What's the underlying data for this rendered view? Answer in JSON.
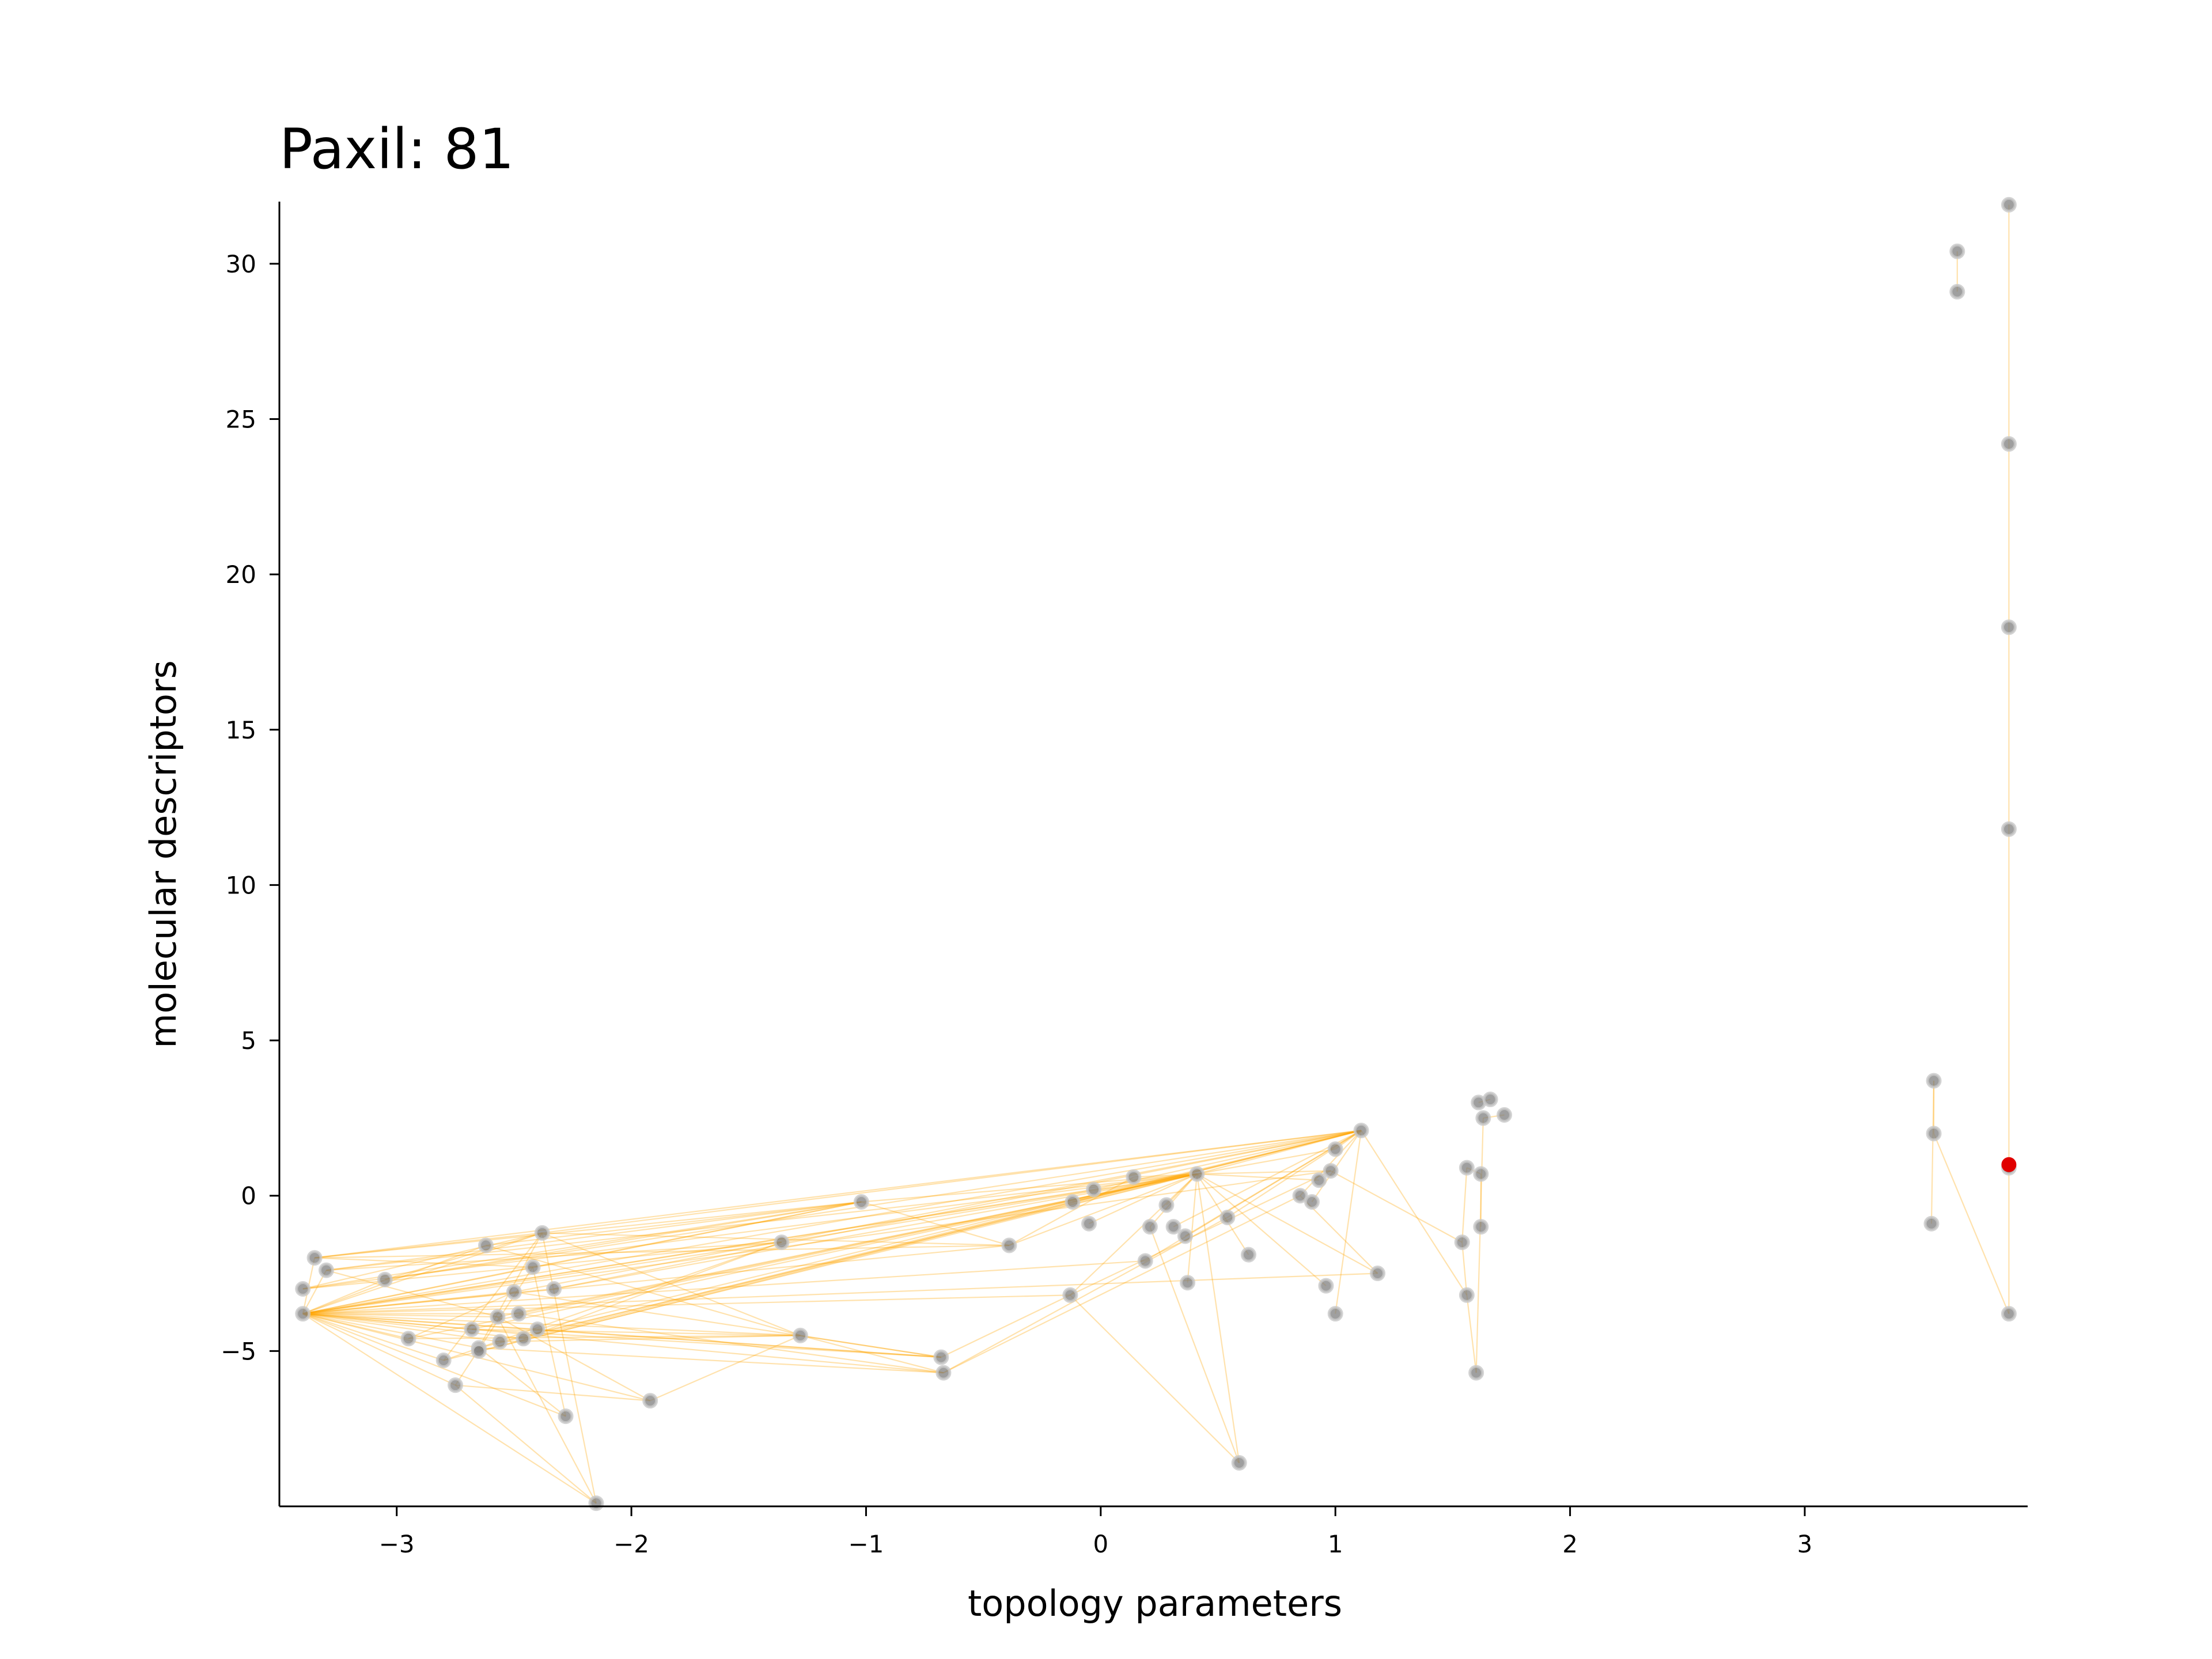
{
  "chart_data": {
    "type": "scatter",
    "title": "Paxil: 81",
    "xlabel": "topology parameters",
    "ylabel": "molecular descriptors",
    "xlim": [
      -3.5,
      3.95
    ],
    "ylim": [
      -10.0,
      32.0
    ],
    "xticks": [
      -3,
      -2,
      -1,
      0,
      1,
      2,
      3
    ],
    "yticks": [
      -5,
      0,
      5,
      10,
      15,
      20,
      25,
      30
    ],
    "grid": false,
    "legend": "none",
    "colors": {
      "point": "#7f7f7f",
      "point_edge": "#c8c8c8",
      "edge": "#ffa500",
      "highlight": "#e00000"
    },
    "points": [
      [
        -3.4,
        -3.8
      ],
      [
        -3.4,
        -3.0
      ],
      [
        -3.35,
        -2.0
      ],
      [
        -3.3,
        -2.4
      ],
      [
        -3.05,
        -2.7
      ],
      [
        -2.95,
        -4.6
      ],
      [
        -2.8,
        -5.3
      ],
      [
        -2.75,
        -6.1
      ],
      [
        -2.68,
        -4.3
      ],
      [
        -2.65,
        -4.9
      ],
      [
        -2.65,
        -5.0
      ],
      [
        -2.62,
        -1.6
      ],
      [
        -2.57,
        -3.9
      ],
      [
        -2.56,
        -4.7
      ],
      [
        -2.5,
        -3.1
      ],
      [
        -2.48,
        -3.8
      ],
      [
        -2.46,
        -4.6
      ],
      [
        -2.42,
        -2.3
      ],
      [
        -2.4,
        -4.3
      ],
      [
        -2.38,
        -1.2
      ],
      [
        -2.33,
        -3.0
      ],
      [
        -2.28,
        -7.1
      ],
      [
        -2.15,
        -9.9
      ],
      [
        -1.92,
        -6.6
      ],
      [
        -1.36,
        -1.5
      ],
      [
        -1.28,
        -4.5
      ],
      [
        -1.02,
        -0.2
      ],
      [
        -0.68,
        -5.2
      ],
      [
        -0.67,
        -5.7
      ],
      [
        -0.39,
        -1.6
      ],
      [
        -0.13,
        -3.2
      ],
      [
        -0.12,
        -0.2
      ],
      [
        -0.05,
        -0.9
      ],
      [
        -0.03,
        0.2
      ],
      [
        0.14,
        0.6
      ],
      [
        0.19,
        -2.1
      ],
      [
        0.21,
        -1.0
      ],
      [
        0.28,
        -0.3
      ],
      [
        0.31,
        -1.0
      ],
      [
        0.36,
        -1.3
      ],
      [
        0.37,
        -2.8
      ],
      [
        0.41,
        0.7
      ],
      [
        0.54,
        -0.7
      ],
      [
        0.59,
        -8.6
      ],
      [
        0.63,
        -1.9
      ],
      [
        0.85,
        0.0
      ],
      [
        0.9,
        -0.2
      ],
      [
        0.93,
        0.5
      ],
      [
        0.96,
        -2.9
      ],
      [
        0.98,
        0.8
      ],
      [
        1.0,
        1.5
      ],
      [
        1.0,
        -3.8
      ],
      [
        1.11,
        2.1
      ],
      [
        1.18,
        -2.5
      ],
      [
        1.54,
        -1.5
      ],
      [
        1.56,
        0.9
      ],
      [
        1.56,
        -3.2
      ],
      [
        1.6,
        -5.7
      ],
      [
        1.61,
        3.0
      ],
      [
        1.62,
        0.7
      ],
      [
        1.62,
        -1.0
      ],
      [
        1.63,
        2.5
      ],
      [
        1.66,
        3.1
      ],
      [
        1.72,
        2.6
      ],
      [
        3.54,
        -0.9
      ],
      [
        3.55,
        3.7
      ],
      [
        3.55,
        2.0
      ],
      [
        3.65,
        30.4
      ],
      [
        3.65,
        29.1
      ],
      [
        3.87,
        31.9
      ],
      [
        3.87,
        24.2
      ],
      [
        3.87,
        18.3
      ],
      [
        3.87,
        11.8
      ],
      [
        3.87,
        0.9
      ],
      [
        3.87,
        -3.8
      ]
    ],
    "highlight_point": [
      3.87,
      1.0
    ],
    "edges": [
      [
        0,
        2
      ],
      [
        0,
        3
      ],
      [
        0,
        4
      ],
      [
        0,
        5
      ],
      [
        0,
        6
      ],
      [
        0,
        7
      ],
      [
        0,
        8
      ],
      [
        0,
        9
      ],
      [
        0,
        11
      ],
      [
        0,
        12
      ],
      [
        0,
        13
      ],
      [
        0,
        14
      ],
      [
        0,
        15
      ],
      [
        0,
        16
      ],
      [
        0,
        17
      ],
      [
        0,
        18
      ],
      [
        0,
        19
      ],
      [
        0,
        20
      ],
      [
        0,
        21
      ],
      [
        0,
        22
      ],
      [
        0,
        23
      ],
      [
        0,
        24
      ],
      [
        0,
        25
      ],
      [
        0,
        26
      ],
      [
        0,
        27
      ],
      [
        0,
        28
      ],
      [
        0,
        29
      ],
      [
        0,
        30
      ],
      [
        0,
        33
      ],
      [
        0,
        35
      ],
      [
        0,
        41
      ],
      [
        0,
        52
      ],
      [
        1,
        19
      ],
      [
        1,
        26
      ],
      [
        1,
        24
      ],
      [
        1,
        41
      ],
      [
        2,
        19
      ],
      [
        2,
        26
      ],
      [
        2,
        17
      ],
      [
        2,
        29
      ],
      [
        3,
        24
      ],
      [
        3,
        41
      ],
      [
        3,
        12
      ],
      [
        4,
        19
      ],
      [
        4,
        26
      ],
      [
        4,
        52
      ],
      [
        5,
        14
      ],
      [
        5,
        25
      ],
      [
        6,
        19
      ],
      [
        6,
        24
      ],
      [
        7,
        17
      ],
      [
        7,
        23
      ],
      [
        8,
        25
      ],
      [
        8,
        27
      ],
      [
        9,
        28
      ],
      [
        9,
        19
      ],
      [
        10,
        41
      ],
      [
        11,
        26
      ],
      [
        11,
        25
      ],
      [
        12,
        23
      ],
      [
        13,
        25
      ],
      [
        14,
        27
      ],
      [
        15,
        28
      ],
      [
        16,
        24
      ],
      [
        17,
        26
      ],
      [
        18,
        27
      ],
      [
        19,
        25
      ],
      [
        19,
        29
      ],
      [
        19,
        52
      ],
      [
        20,
        41
      ],
      [
        21,
        17
      ],
      [
        21,
        9
      ],
      [
        22,
        12
      ],
      [
        22,
        19
      ],
      [
        22,
        7
      ],
      [
        23,
        25
      ],
      [
        24,
        41
      ],
      [
        25,
        27
      ],
      [
        25,
        28
      ],
      [
        26,
        41
      ],
      [
        26,
        29
      ],
      [
        27,
        30
      ],
      [
        28,
        42
      ],
      [
        28,
        45
      ],
      [
        29,
        34
      ],
      [
        29,
        41
      ],
      [
        30,
        41
      ],
      [
        30,
        43
      ],
      [
        31,
        41
      ],
      [
        32,
        41
      ],
      [
        33,
        52
      ],
      [
        34,
        41
      ],
      [
        35,
        52
      ],
      [
        36,
        41
      ],
      [
        37,
        41
      ],
      [
        38,
        52
      ],
      [
        39,
        52
      ],
      [
        40,
        41
      ],
      [
        41,
        52
      ],
      [
        41,
        50
      ],
      [
        41,
        49
      ],
      [
        42,
        52
      ],
      [
        43,
        41
      ],
      [
        44,
        41
      ],
      [
        45,
        52
      ],
      [
        46,
        52
      ],
      [
        47,
        41
      ],
      [
        48,
        41
      ],
      [
        50,
        52
      ],
      [
        51,
        52
      ],
      [
        41,
        53
      ],
      [
        43,
        36
      ],
      [
        53,
        45
      ],
      [
        54,
        55
      ],
      [
        54,
        56
      ],
      [
        56,
        57
      ],
      [
        55,
        59
      ],
      [
        58,
        62
      ],
      [
        59,
        60
      ],
      [
        61,
        63
      ],
      [
        64,
        65
      ],
      [
        65,
        66
      ],
      [
        67,
        68
      ],
      [
        69,
        70
      ],
      [
        70,
        71
      ],
      [
        71,
        72
      ],
      [
        72,
        73
      ],
      [
        73,
        74
      ],
      [
        66,
        74
      ],
      [
        30,
        49
      ],
      [
        5,
        41
      ],
      [
        8,
        41
      ],
      [
        14,
        52
      ],
      [
        18,
        52
      ],
      [
        0,
        53
      ],
      [
        0,
        49
      ],
      [
        15,
        41
      ],
      [
        9,
        52
      ],
      [
        12,
        41
      ],
      [
        20,
        52
      ],
      [
        57,
        61
      ],
      [
        52,
        56
      ],
      [
        49,
        54
      ],
      [
        2,
        52
      ],
      [
        3,
        26
      ],
      [
        6,
        52
      ],
      [
        13,
        41
      ],
      [
        16,
        52
      ]
    ]
  }
}
